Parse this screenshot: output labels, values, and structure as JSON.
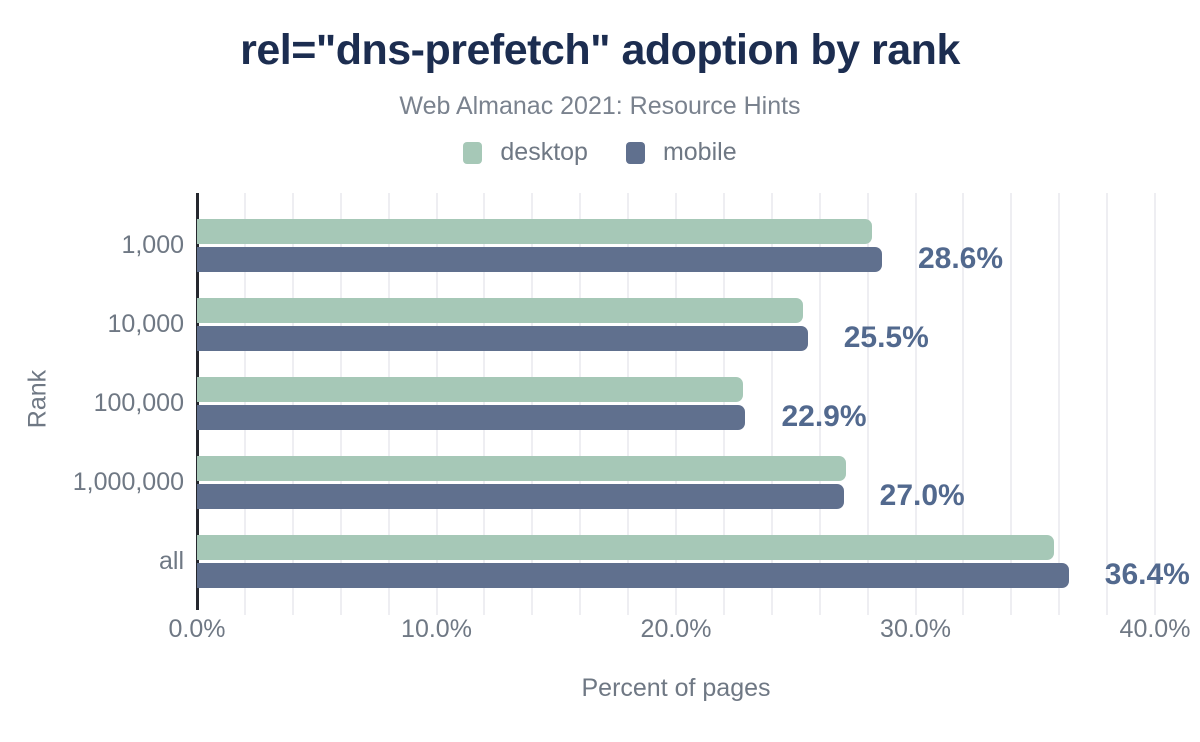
{
  "header": {
    "title": "rel=\"dns-prefetch\" adoption by rank",
    "subtitle": "Web Almanac 2021: Resource Hints"
  },
  "colors": {
    "desktop": "#a6c8b7",
    "mobile": "#60708e",
    "title_text": "#1c2d50",
    "value_label_text": "#52698e",
    "axis_line": "#25282e",
    "gridline": "#eeeef2",
    "muted_text": "#6f7884"
  },
  "chart_data": {
    "type": "bar",
    "orientation": "horizontal",
    "title": "rel=\"dns-prefetch\" adoption by rank",
    "subtitle": "Web Almanac 2021: Resource Hints",
    "categories": [
      "1,000",
      "10,000",
      "100,000",
      "1,000,000",
      "all"
    ],
    "series": [
      {
        "name": "desktop",
        "color": "#a6c8b7",
        "values": [
          28.2,
          25.3,
          22.8,
          27.1,
          35.8
        ]
      },
      {
        "name": "mobile",
        "color": "#60708e",
        "values": [
          28.6,
          25.5,
          22.9,
          27.0,
          36.4
        ]
      }
    ],
    "bar_labels": [
      "28.6%",
      "25.5%",
      "22.9%",
      "27.0%",
      "36.4%"
    ],
    "xlabel": "Percent of pages",
    "ylabel": "Rank",
    "xlim": [
      0,
      40
    ],
    "x_ticks": [
      "0.0%",
      "10.0%",
      "20.0%",
      "30.0%",
      "40.0%"
    ],
    "x_tick_values": [
      0,
      10,
      20,
      30,
      40
    ],
    "gridline_step": 2,
    "grid": true,
    "legend_position": "top"
  }
}
